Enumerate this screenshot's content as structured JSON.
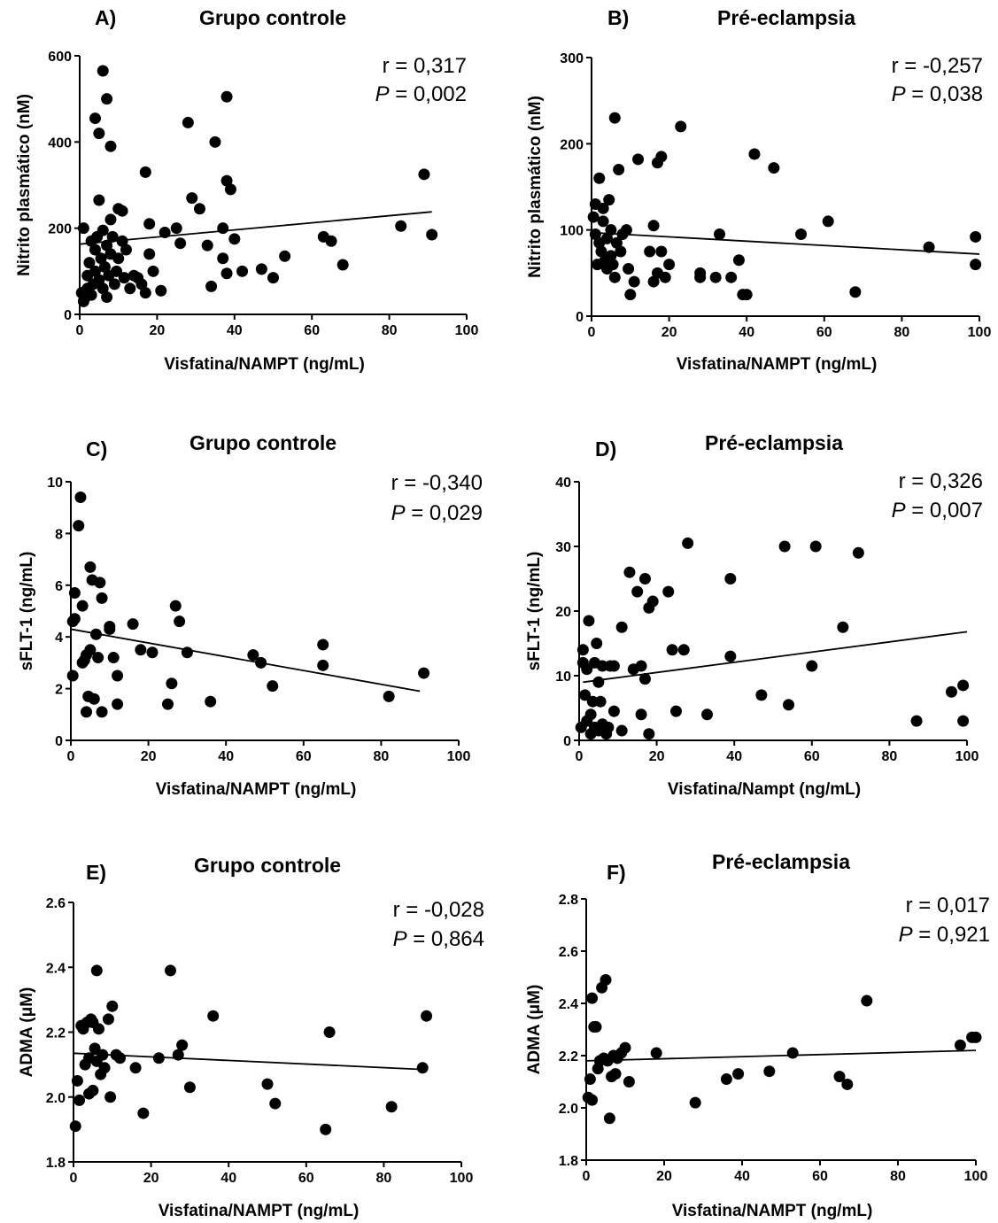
{
  "chart_data": [
    {
      "type": "scatter",
      "panel_label": "A)",
      "title": "Grupo controle",
      "xlabel": "Visfatina/NAMPT (ng/mL)",
      "ylabel": "Nitrito plasmático (nM)",
      "xlim": [
        0,
        100
      ],
      "ylim": [
        0,
        600
      ],
      "xticks": [
        "0",
        "20",
        "40",
        "60",
        "80",
        "100"
      ],
      "yticks": [
        "0",
        "200",
        "400",
        "600"
      ],
      "r_text": "r = 0,317",
      "p_symbol": "P",
      "p_value": " = 0,002",
      "regression": [
        [
          0,
          163
        ],
        [
          91,
          238
        ]
      ],
      "points": [
        [
          0.5,
          50
        ],
        [
          1,
          30
        ],
        [
          1.5,
          40
        ],
        [
          1,
          200
        ],
        [
          2,
          60
        ],
        [
          2,
          90
        ],
        [
          2.5,
          120
        ],
        [
          3,
          170
        ],
        [
          3,
          45
        ],
        [
          3.5,
          70
        ],
        [
          4,
          100
        ],
        [
          4,
          150
        ],
        [
          4.5,
          180
        ],
        [
          5,
          265
        ],
        [
          5,
          80
        ],
        [
          5.5,
          130
        ],
        [
          6,
          195
        ],
        [
          6,
          60
        ],
        [
          6.5,
          110
        ],
        [
          7,
          160
        ],
        [
          7,
          40
        ],
        [
          7.5,
          90
        ],
        [
          8,
          220
        ],
        [
          8,
          140
        ],
        [
          8.5,
          180
        ],
        [
          9,
          70
        ],
        [
          9.5,
          100
        ],
        [
          10,
          245
        ],
        [
          10,
          130
        ],
        [
          11,
          240
        ],
        [
          11,
          170
        ],
        [
          11.5,
          85
        ],
        [
          12,
          150
        ],
        [
          13,
          60
        ],
        [
          14,
          90
        ],
        [
          15,
          85
        ],
        [
          16,
          70
        ],
        [
          17,
          50
        ],
        [
          17,
          330
        ],
        [
          18,
          140
        ],
        [
          18,
          210
        ],
        [
          19,
          100
        ],
        [
          4,
          455
        ],
        [
          5,
          420
        ],
        [
          6,
          565
        ],
        [
          7,
          500
        ],
        [
          8,
          390
        ],
        [
          21,
          55
        ],
        [
          22,
          190
        ],
        [
          25,
          200
        ],
        [
          26,
          165
        ],
        [
          28,
          445
        ],
        [
          29,
          270
        ],
        [
          31,
          245
        ],
        [
          33,
          160
        ],
        [
          34,
          65
        ],
        [
          35,
          400
        ],
        [
          37,
          130
        ],
        [
          37,
          200
        ],
        [
          38,
          310
        ],
        [
          38,
          95
        ],
        [
          38,
          505
        ],
        [
          39,
          290
        ],
        [
          40,
          175
        ],
        [
          42,
          100
        ],
        [
          47,
          105
        ],
        [
          50,
          85
        ],
        [
          53,
          135
        ],
        [
          63,
          180
        ],
        [
          65,
          170
        ],
        [
          68,
          115
        ],
        [
          83,
          205
        ],
        [
          89,
          325
        ],
        [
          91,
          185
        ]
      ]
    },
    {
      "type": "scatter",
      "panel_label": "B)",
      "title": "Pré-eclampsia",
      "xlabel": "Visfatina/NAMPT (ng/mL)",
      "ylabel": "Nitrito plasmático (nM)",
      "xlim": [
        0,
        100
      ],
      "ylim": [
        0,
        300
      ],
      "xticks": [
        "0",
        "20",
        "40",
        "60",
        "80",
        "100"
      ],
      "yticks": [
        "0",
        "100",
        "200",
        "300"
      ],
      "r_text": "r = -0,257",
      "p_symbol": "P",
      "p_value": " = 0,038",
      "regression": [
        [
          0,
          97
        ],
        [
          100,
          72
        ]
      ],
      "points": [
        [
          0.5,
          115
        ],
        [
          1,
          130
        ],
        [
          1,
          95
        ],
        [
          1.5,
          60
        ],
        [
          2,
          160
        ],
        [
          2,
          85
        ],
        [
          2.5,
          75
        ],
        [
          3,
          125
        ],
        [
          3,
          110
        ],
        [
          3.5,
          65
        ],
        [
          4,
          90
        ],
        [
          4,
          55
        ],
        [
          4.5,
          135
        ],
        [
          5,
          100
        ],
        [
          5,
          70
        ],
        [
          5.5,
          60
        ],
        [
          6,
          230
        ],
        [
          6,
          45
        ],
        [
          6.5,
          85
        ],
        [
          7,
          170
        ],
        [
          7.5,
          75
        ],
        [
          8,
          95
        ],
        [
          9,
          100
        ],
        [
          9.5,
          55
        ],
        [
          10,
          25
        ],
        [
          11,
          40
        ],
        [
          12,
          182
        ],
        [
          15,
          75
        ],
        [
          16,
          105
        ],
        [
          16,
          40
        ],
        [
          17,
          178
        ],
        [
          17,
          50
        ],
        [
          18,
          185
        ],
        [
          18,
          75
        ],
        [
          19,
          45
        ],
        [
          20,
          60
        ],
        [
          23,
          220
        ],
        [
          28,
          45
        ],
        [
          28,
          50
        ],
        [
          32,
          45
        ],
        [
          33,
          95
        ],
        [
          36,
          45
        ],
        [
          38,
          65
        ],
        [
          39,
          25
        ],
        [
          40,
          25
        ],
        [
          42,
          188
        ],
        [
          47,
          172
        ],
        [
          54,
          95
        ],
        [
          61,
          110
        ],
        [
          68,
          28
        ],
        [
          87,
          80
        ],
        [
          99,
          92
        ],
        [
          99,
          60
        ]
      ]
    },
    {
      "type": "scatter",
      "panel_label": "C)",
      "title": "Grupo controle",
      "xlabel": "Visfatina/NAMPT (ng/mL)",
      "ylabel": "sFLT-1 (ng/mL)",
      "xlim": [
        0,
        100
      ],
      "ylim": [
        0,
        10
      ],
      "xticks": [
        "0",
        "20",
        "40",
        "60",
        "80",
        "100"
      ],
      "yticks": [
        "0",
        "2",
        "4",
        "6",
        "8",
        "10"
      ],
      "r_text": "r = -0,340",
      "p_symbol": "P",
      "p_value": " = 0,029",
      "regression": [
        [
          0,
          4.3
        ],
        [
          90,
          1.9
        ]
      ],
      "points": [
        [
          0.5,
          2.5
        ],
        [
          0.5,
          4.6
        ],
        [
          1,
          5.7
        ],
        [
          1,
          4.7
        ],
        [
          2,
          8.3
        ],
        [
          2.5,
          9.4
        ],
        [
          3,
          3.0
        ],
        [
          3,
          5.2
        ],
        [
          3.5,
          3.1
        ],
        [
          4,
          3.3
        ],
        [
          4,
          1.1
        ],
        [
          4.5,
          1.7
        ],
        [
          5,
          6.7
        ],
        [
          5,
          3.5
        ],
        [
          5.5,
          6.2
        ],
        [
          6,
          1.6
        ],
        [
          6.5,
          4.1
        ],
        [
          7,
          3.2
        ],
        [
          7.5,
          6.1
        ],
        [
          8,
          1.1
        ],
        [
          8,
          5.5
        ],
        [
          10,
          4.4
        ],
        [
          10,
          4.3
        ],
        [
          11,
          3.2
        ],
        [
          12,
          1.4
        ],
        [
          12,
          2.5
        ],
        [
          16,
          4.5
        ],
        [
          18,
          3.5
        ],
        [
          21,
          3.4
        ],
        [
          25,
          1.4
        ],
        [
          26,
          2.2
        ],
        [
          27,
          5.2
        ],
        [
          28,
          4.6
        ],
        [
          30,
          3.4
        ],
        [
          36,
          1.5
        ],
        [
          47,
          3.3
        ],
        [
          49,
          3.0
        ],
        [
          52,
          2.1
        ],
        [
          65,
          3.7
        ],
        [
          65,
          2.9
        ],
        [
          82,
          1.7
        ],
        [
          91,
          2.6
        ]
      ]
    },
    {
      "type": "scatter",
      "panel_label": "D)",
      "title": "Pré-eclampsia",
      "xlabel": "Visfatina/Nampt (ng/mL)",
      "ylabel": "sFLT-1 (ng/mL)",
      "xlim": [
        0,
        100
      ],
      "ylim": [
        0,
        40
      ],
      "xticks": [
        "0",
        "20",
        "40",
        "60",
        "80",
        "100"
      ],
      "yticks": [
        "0",
        "10",
        "20",
        "30",
        "40"
      ],
      "r_text": "r = 0,326",
      "p_symbol": "P",
      "p_value": " = 0,007",
      "regression": [
        [
          1,
          9
        ],
        [
          100,
          16.8
        ]
      ],
      "points": [
        [
          0.5,
          2
        ],
        [
          1,
          12
        ],
        [
          1,
          14
        ],
        [
          1.5,
          7
        ],
        [
          2,
          3
        ],
        [
          2,
          11
        ],
        [
          2.5,
          18.5
        ],
        [
          3,
          1
        ],
        [
          3,
          4
        ],
        [
          3.5,
          6
        ],
        [
          4,
          12
        ],
        [
          4,
          2
        ],
        [
          4.5,
          15
        ],
        [
          5,
          9
        ],
        [
          5,
          1.5
        ],
        [
          5.5,
          6
        ],
        [
          6,
          11.5
        ],
        [
          6,
          2.5
        ],
        [
          7,
          1
        ],
        [
          7.5,
          2
        ],
        [
          8,
          11.5
        ],
        [
          9,
          4.5
        ],
        [
          9,
          11.5
        ],
        [
          11,
          17.5
        ],
        [
          11,
          1.5
        ],
        [
          13,
          26
        ],
        [
          14,
          11
        ],
        [
          15,
          23
        ],
        [
          16,
          11.5
        ],
        [
          16,
          4
        ],
        [
          17,
          9.5
        ],
        [
          17,
          25
        ],
        [
          18,
          20.5
        ],
        [
          18,
          1
        ],
        [
          19,
          21.5
        ],
        [
          23,
          23
        ],
        [
          24,
          14
        ],
        [
          25,
          4.5
        ],
        [
          27,
          14
        ],
        [
          28,
          30.5
        ],
        [
          33,
          4
        ],
        [
          39,
          25
        ],
        [
          39,
          13
        ],
        [
          47,
          7
        ],
        [
          53,
          30
        ],
        [
          54,
          5.5
        ],
        [
          60,
          11.5
        ],
        [
          61,
          30
        ],
        [
          68,
          17.5
        ],
        [
          72,
          29
        ],
        [
          87,
          3
        ],
        [
          96,
          7.5
        ],
        [
          99,
          8.5
        ],
        [
          99,
          3
        ]
      ]
    },
    {
      "type": "scatter",
      "panel_label": "E)",
      "title": "Grupo controle",
      "xlabel": "Visfatina/NAMPT (ng/mL)",
      "ylabel": "ADMA (μM)",
      "xlim": [
        0,
        100
      ],
      "ylim": [
        1.8,
        2.6
      ],
      "xticks": [
        "0",
        "20",
        "40",
        "60",
        "80",
        "100"
      ],
      "yticks": [
        "1.8",
        "2.0",
        "2.2",
        "2.4",
        "2.6"
      ],
      "r_text": "r = -0,028",
      "p_symbol": "P",
      "p_value": " = 0,864",
      "regression": [
        [
          0,
          2.135
        ],
        [
          90,
          2.085
        ]
      ],
      "points": [
        [
          0.5,
          1.91
        ],
        [
          1,
          2.05
        ],
        [
          1.5,
          1.99
        ],
        [
          2,
          2.22
        ],
        [
          2.5,
          2.21
        ],
        [
          3,
          2.1
        ],
        [
          3.5,
          2.23
        ],
        [
          4,
          2.12
        ],
        [
          4,
          2.01
        ],
        [
          4.5,
          2.24
        ],
        [
          5,
          2.02
        ],
        [
          5,
          2.23
        ],
        [
          5.5,
          2.15
        ],
        [
          6,
          2.39
        ],
        [
          6,
          2.11
        ],
        [
          6.5,
          2.21
        ],
        [
          7,
          2.07
        ],
        [
          7.5,
          2.13
        ],
        [
          8,
          2.09
        ],
        [
          9,
          2.24
        ],
        [
          9.5,
          2.0
        ],
        [
          10,
          2.28
        ],
        [
          11,
          2.13
        ],
        [
          12,
          2.12
        ],
        [
          16,
          2.09
        ],
        [
          18,
          1.95
        ],
        [
          22,
          2.12
        ],
        [
          25,
          2.39
        ],
        [
          27,
          2.13
        ],
        [
          28,
          2.16
        ],
        [
          30,
          2.03
        ],
        [
          36,
          2.25
        ],
        [
          50,
          2.04
        ],
        [
          52,
          1.98
        ],
        [
          65,
          1.9
        ],
        [
          66,
          2.2
        ],
        [
          82,
          1.97
        ],
        [
          90,
          2.09
        ],
        [
          91,
          2.25
        ]
      ]
    },
    {
      "type": "scatter",
      "panel_label": "F)",
      "title": "Pré-eclampsia",
      "xlabel": "Visfatina/NAMPT (ng/mL)",
      "ylabel": "ADMA (μM)",
      "xlim": [
        0,
        100
      ],
      "ylim": [
        1.8,
        2.8
      ],
      "xticks": [
        "0",
        "20",
        "40",
        "60",
        "80",
        "100"
      ],
      "yticks": [
        "1.8",
        "2.0",
        "2.2",
        "2.4",
        "2.6",
        "2.8"
      ],
      "r_text": "r = 0,017",
      "p_symbol": "P",
      "p_value": " = 0,921",
      "regression": [
        [
          0,
          2.18
        ],
        [
          100,
          2.22
        ]
      ],
      "points": [
        [
          0.5,
          2.04
        ],
        [
          1,
          2.11
        ],
        [
          1.5,
          2.03
        ],
        [
          1.5,
          2.42
        ],
        [
          2,
          2.31
        ],
        [
          2.5,
          2.31
        ],
        [
          3,
          2.15
        ],
        [
          3.5,
          2.18
        ],
        [
          4,
          2.46
        ],
        [
          4.5,
          2.19
        ],
        [
          5,
          2.49
        ],
        [
          5.5,
          2.18
        ],
        [
          6,
          1.96
        ],
        [
          6.5,
          2.12
        ],
        [
          7,
          2.2
        ],
        [
          7.5,
          2.13
        ],
        [
          8,
          2.19
        ],
        [
          9,
          2.21
        ],
        [
          10,
          2.23
        ],
        [
          11,
          2.1
        ],
        [
          18,
          2.21
        ],
        [
          28,
          2.02
        ],
        [
          36,
          2.11
        ],
        [
          39,
          2.13
        ],
        [
          47,
          2.14
        ],
        [
          53,
          2.21
        ],
        [
          65,
          2.12
        ],
        [
          67,
          2.09
        ],
        [
          72,
          2.41
        ],
        [
          96,
          2.24
        ],
        [
          99,
          2.27
        ],
        [
          100,
          2.27
        ]
      ]
    }
  ]
}
